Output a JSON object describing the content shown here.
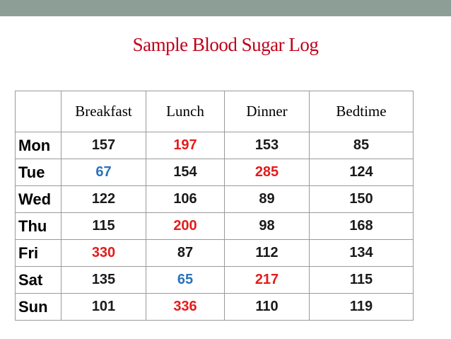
{
  "title": "Sample Blood Sugar Log",
  "colors": {
    "normal": "#1a1a1a",
    "high": "#e31b1b",
    "low": "#2a73b8",
    "title": "#c0001a",
    "top_bar": "#8d9e97"
  },
  "columns": [
    "",
    "Breakfast",
    "Lunch",
    "Dinner",
    "Bedtime"
  ],
  "rows": [
    {
      "day": "Mon",
      "values": [
        "157",
        "197",
        "153",
        "85"
      ],
      "status": [
        "normal",
        "high",
        "normal",
        "normal"
      ]
    },
    {
      "day": "Tue",
      "values": [
        "67",
        "154",
        "285",
        "124"
      ],
      "status": [
        "low",
        "normal",
        "high",
        "normal"
      ]
    },
    {
      "day": "Wed",
      "values": [
        "122",
        "106",
        "89",
        "150"
      ],
      "status": [
        "normal",
        "normal",
        "normal",
        "normal"
      ]
    },
    {
      "day": "Thu",
      "values": [
        "115",
        "200",
        "98",
        "168"
      ],
      "status": [
        "normal",
        "high",
        "normal",
        "normal"
      ]
    },
    {
      "day": "Fri",
      "values": [
        "330",
        "87",
        "112",
        "134"
      ],
      "status": [
        "high",
        "normal",
        "normal",
        "normal"
      ]
    },
    {
      "day": "Sat",
      "values": [
        "135",
        "65",
        "217",
        "115"
      ],
      "status": [
        "normal",
        "low",
        "high",
        "normal"
      ]
    },
    {
      "day": "Sun",
      "values": [
        "101",
        "336",
        "110",
        "119"
      ],
      "status": [
        "normal",
        "high",
        "normal",
        "normal"
      ]
    }
  ]
}
